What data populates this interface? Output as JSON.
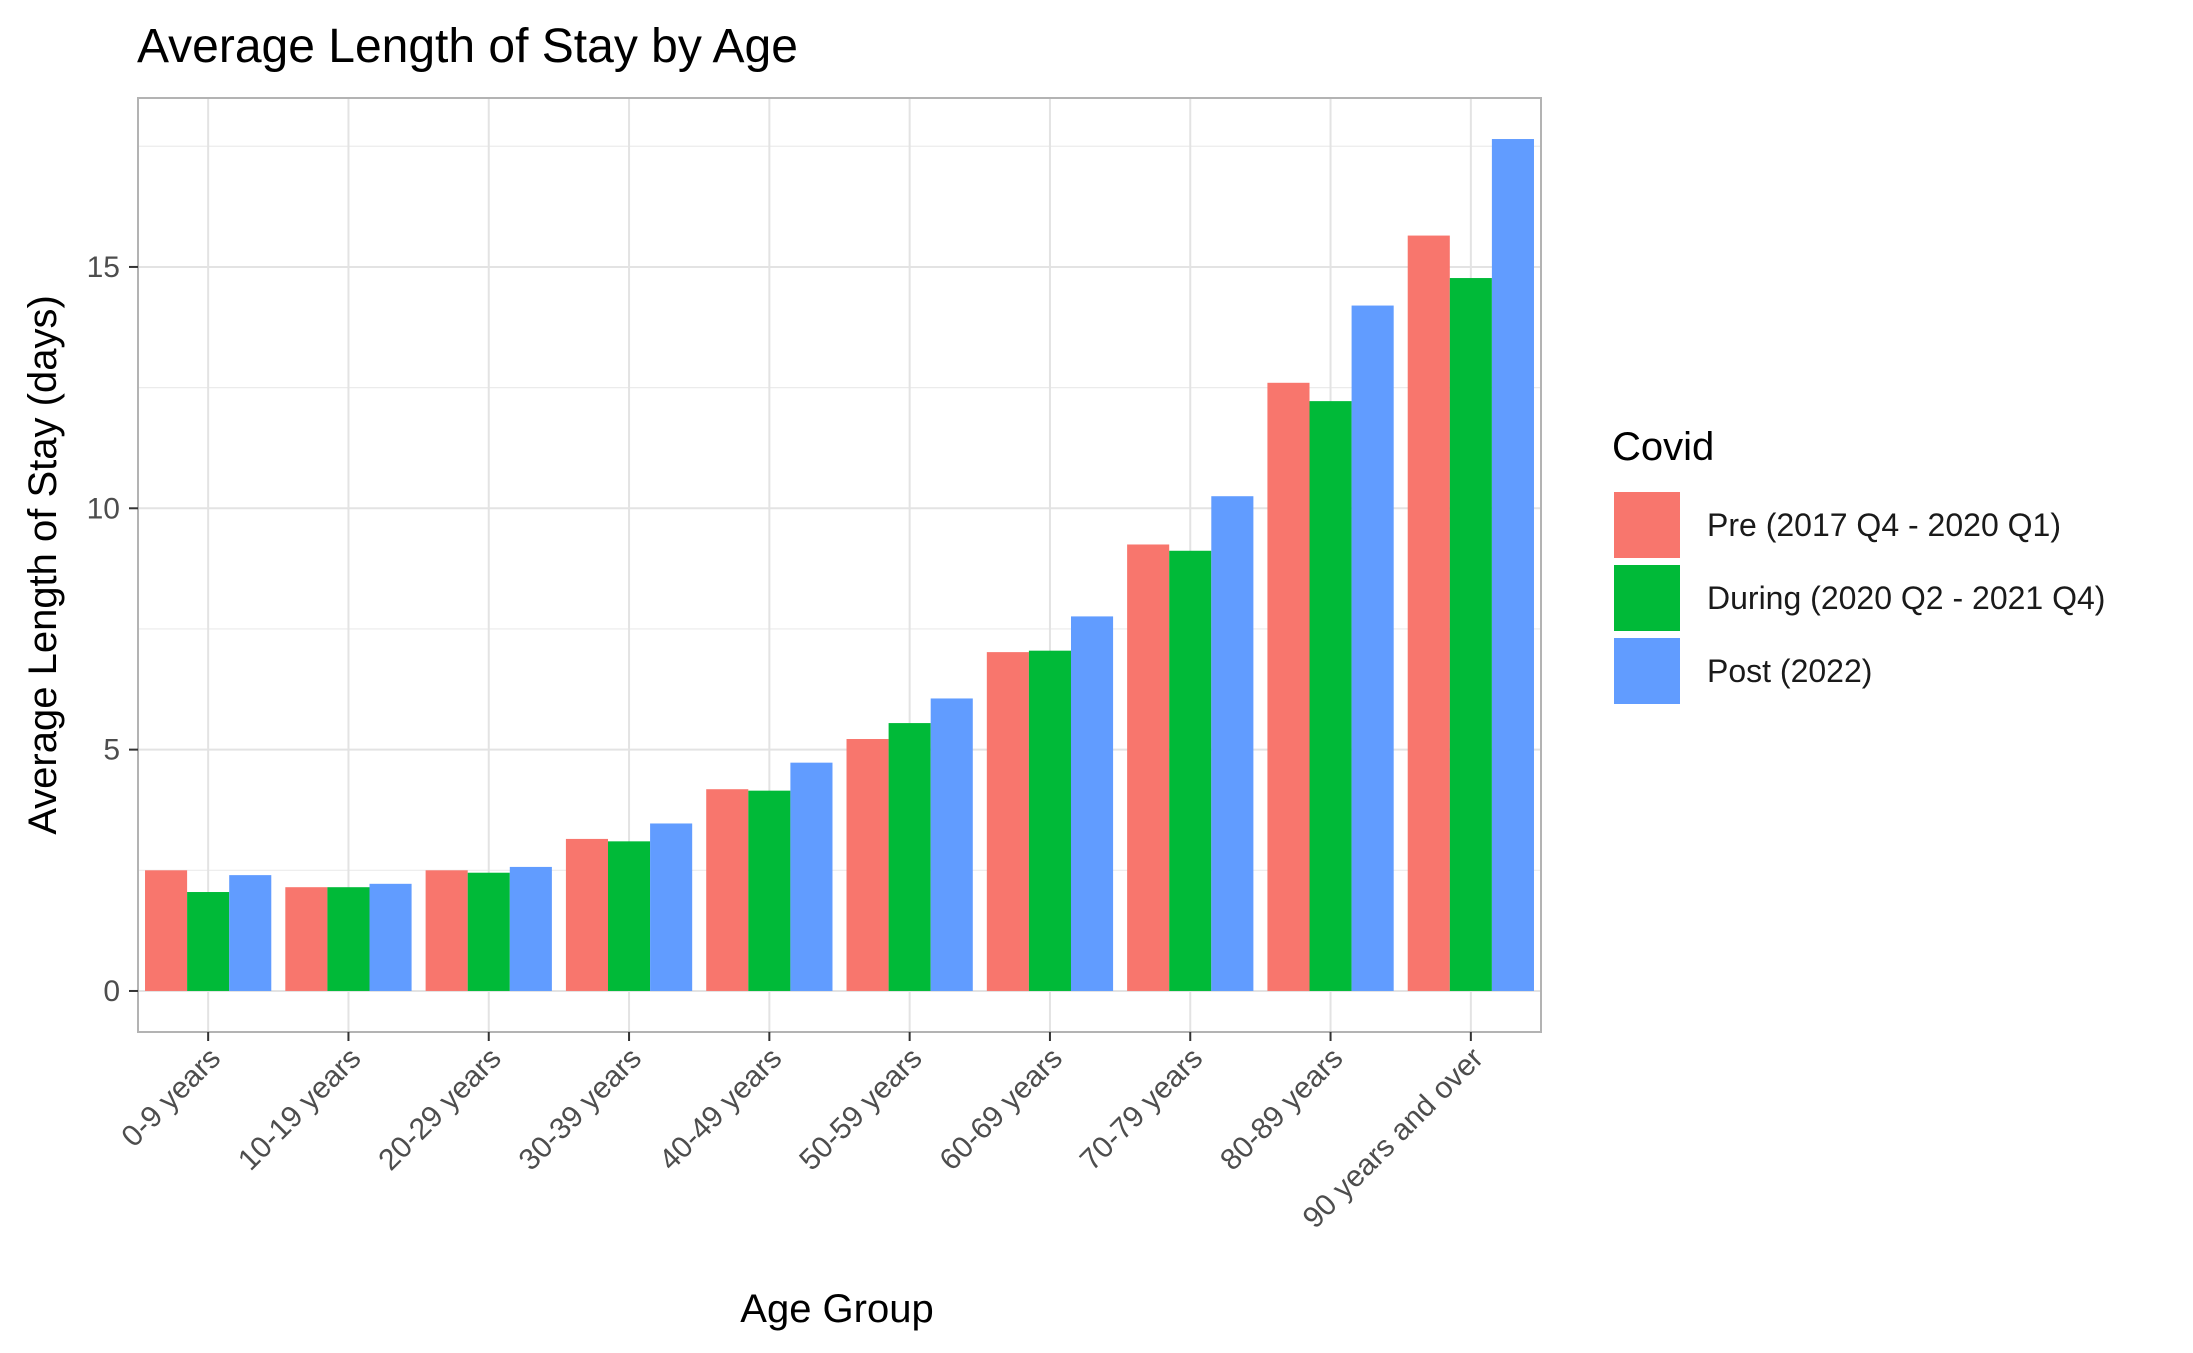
{
  "chart_data": {
    "type": "bar",
    "title": "Average Length of Stay by Age",
    "xlabel": "Age Group",
    "ylabel": "Average Length of Stay (days)",
    "ylim": [
      -0.85,
      18.5
    ],
    "yticks": [
      "0",
      "5",
      "10",
      "15"
    ],
    "ytick_values": [
      0,
      5,
      10,
      15
    ],
    "grid": true,
    "legend_position": "right",
    "legend_title": "Covid",
    "categories": [
      "0-9 years",
      "10-19 years",
      "20-29 years",
      "30-39 years",
      "40-49 years",
      "50-59 years",
      "60-69 years",
      "70-79 years",
      "80-89 years",
      "90 years and over"
    ],
    "series": [
      {
        "name": "Pre (2017 Q4 - 2020 Q1)",
        "color": "#F8766D",
        "values": [
          2.5,
          2.15,
          2.5,
          3.15,
          4.18,
          5.22,
          7.02,
          9.25,
          12.6,
          15.65
        ]
      },
      {
        "name": "During (2020 Q2 - 2021 Q4)",
        "color": "#00BA38",
        "values": [
          2.05,
          2.15,
          2.45,
          3.1,
          4.15,
          5.55,
          7.05,
          9.12,
          12.22,
          14.77
        ]
      },
      {
        "name": "Post (2022)",
        "color": "#619CFF",
        "values": [
          2.4,
          2.22,
          2.57,
          3.47,
          4.73,
          6.06,
          7.76,
          10.25,
          14.2,
          17.65
        ]
      }
    ]
  }
}
